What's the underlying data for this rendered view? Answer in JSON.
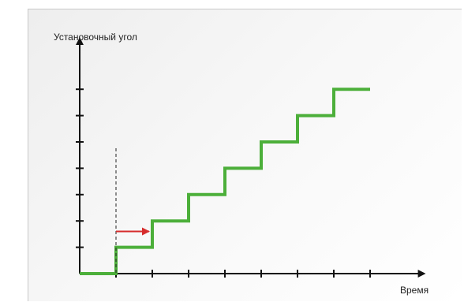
{
  "chart_data": {
    "type": "line",
    "title": "",
    "ylabel": "Установочный угол",
    "xlabel": "Время",
    "x_ticks": [
      1,
      2,
      3,
      4,
      5,
      6,
      7,
      8
    ],
    "y_ticks": [
      1,
      2,
      3,
      4,
      5,
      6,
      7
    ],
    "xlim": [
      0,
      8.6
    ],
    "ylim": [
      0,
      8.8
    ],
    "series": [
      {
        "color": "#4caf3a",
        "points": [
          [
            0,
            0
          ],
          [
            1,
            0
          ],
          [
            1,
            1
          ],
          [
            2,
            1
          ],
          [
            2,
            2
          ],
          [
            3,
            2
          ],
          [
            3,
            3
          ],
          [
            4,
            3
          ],
          [
            4,
            4
          ],
          [
            5,
            4
          ],
          [
            5,
            5
          ],
          [
            6,
            5
          ],
          [
            6,
            6
          ],
          [
            7,
            6
          ],
          [
            7,
            7
          ],
          [
            8,
            7
          ]
        ]
      }
    ],
    "markers": {
      "dashed_line_x": 1,
      "arrow": {
        "from": [
          1,
          1.6
        ],
        "to": [
          2,
          1.6
        ],
        "color": "#d62b2b"
      }
    },
    "grid": false
  }
}
